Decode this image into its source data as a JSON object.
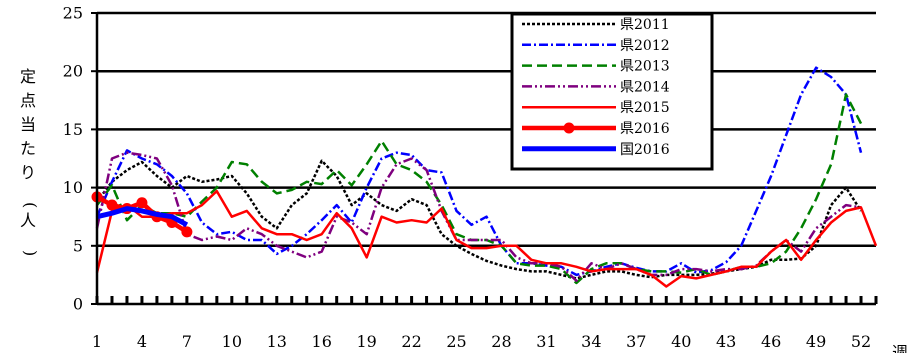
{
  "chart_data": {
    "type": "line",
    "title": "",
    "ylabel": "定点当たり(人)",
    "xlabel": "週",
    "ylim": [
      0,
      25
    ],
    "yticks": [
      0,
      5,
      10,
      15,
      20,
      25
    ],
    "xlim": [
      1,
      53
    ],
    "xticks": [
      1,
      4,
      7,
      10,
      13,
      16,
      19,
      22,
      25,
      28,
      31,
      34,
      37,
      40,
      43,
      46,
      49,
      52
    ],
    "grid": "horizontal",
    "legend_position": "top-right",
    "series": [
      {
        "name": "県2011",
        "color": "#000000",
        "dash": "3 2",
        "width": 2.5,
        "marker": false,
        "x": [
          1,
          2,
          3,
          4,
          5,
          6,
          7,
          8,
          9,
          10,
          11,
          12,
          13,
          14,
          15,
          16,
          17,
          18,
          19,
          20,
          21,
          22,
          23,
          24,
          25,
          26,
          27,
          28,
          29,
          30,
          31,
          32,
          33,
          34,
          35,
          36,
          37,
          38,
          39,
          40,
          41,
          42,
          43,
          44,
          45,
          46,
          47,
          48,
          49,
          50,
          51,
          52
        ],
        "y": [
          8.8,
          10.5,
          11.5,
          12.2,
          11,
          10,
          11,
          10.5,
          10.7,
          11,
          9.5,
          7.5,
          6.5,
          8.5,
          9.5,
          12.3,
          11,
          8.5,
          9.5,
          8.5,
          8,
          9,
          8.5,
          6,
          5,
          4.3,
          3.7,
          3.3,
          3,
          2.8,
          2.8,
          2.5,
          2.2,
          2.5,
          2.8,
          2.8,
          2.5,
          2.3,
          2.5,
          2.5,
          2.5,
          2.6,
          2.8,
          3,
          3.2,
          3.8,
          3.8,
          3.9,
          5,
          8.5,
          10,
          8
        ]
      },
      {
        "name": "県2012",
        "color": "#0000ff",
        "dash": "9 3 2 3",
        "width": 2.5,
        "marker": false,
        "x": [
          1,
          2,
          3,
          4,
          5,
          6,
          7,
          8,
          9,
          10,
          11,
          12,
          13,
          14,
          15,
          16,
          17,
          18,
          19,
          20,
          21,
          22,
          23,
          24,
          25,
          26,
          27,
          28,
          29,
          30,
          31,
          32,
          33,
          34,
          35,
          36,
          37,
          38,
          39,
          40,
          41,
          42,
          43,
          44,
          45,
          46,
          47,
          48,
          49,
          50,
          51,
          52
        ],
        "y": [
          7.5,
          10.5,
          13.2,
          12.5,
          12,
          11,
          9.5,
          7,
          6,
          6.2,
          5.5,
          5.5,
          4.3,
          5,
          6,
          7.2,
          8.5,
          7,
          10,
          12.5,
          13,
          12.8,
          11.5,
          11.3,
          8,
          6.8,
          7.5,
          5,
          3.5,
          3.5,
          3.3,
          3.2,
          2.5,
          2.8,
          3.2,
          3.5,
          3.1,
          2.8,
          2.8,
          3.5,
          2.7,
          2.9,
          3.6,
          5,
          8,
          11,
          14.5,
          18,
          20.3,
          19.5,
          18,
          13
        ]
      },
      {
        "name": "県2013",
        "color": "#008000",
        "dash": "10 5",
        "width": 2.5,
        "marker": false,
        "x": [
          1,
          2,
          3,
          4,
          5,
          6,
          7,
          8,
          9,
          10,
          11,
          12,
          13,
          14,
          15,
          16,
          17,
          18,
          19,
          20,
          21,
          22,
          23,
          24,
          25,
          26,
          27,
          28,
          29,
          30,
          31,
          32,
          33,
          34,
          35,
          36,
          37,
          38,
          39,
          40,
          41,
          42,
          43,
          44,
          45,
          46,
          47,
          48,
          49,
          50,
          51,
          52
        ],
        "y": [
          8.5,
          10.2,
          7.2,
          8.5,
          7.8,
          7.8,
          7.5,
          8.8,
          10,
          12.2,
          12,
          10.5,
          9.5,
          9.8,
          10.5,
          10.3,
          11.5,
          10.2,
          12,
          14,
          12,
          11.5,
          10.5,
          8.5,
          6,
          5.5,
          5.5,
          5,
          3.5,
          3.3,
          3.3,
          3,
          1.8,
          3,
          3.5,
          3.5,
          3,
          2.8,
          2.8,
          2.7,
          3,
          2.5,
          2.8,
          3.2,
          3.2,
          3.5,
          4.5,
          6.5,
          9,
          12,
          18,
          15.5
        ]
      },
      {
        "name": "県2014",
        "color": "#7f007f",
        "dash": "10 3 2 3 2 3",
        "width": 2.5,
        "marker": false,
        "x": [
          1,
          2,
          3,
          4,
          5,
          6,
          7,
          8,
          9,
          10,
          11,
          12,
          13,
          14,
          15,
          16,
          17,
          18,
          19,
          20,
          21,
          22,
          23,
          24,
          25,
          26,
          27,
          28,
          29,
          30,
          31,
          32,
          33,
          34,
          35,
          36,
          37,
          38,
          39,
          40,
          41,
          42,
          43,
          44,
          45,
          46,
          47,
          48,
          49,
          50,
          51,
          52
        ],
        "y": [
          6.5,
          12.5,
          13,
          12.8,
          12.5,
          10.2,
          6,
          5.5,
          5.8,
          5.5,
          6.5,
          6,
          5,
          4.5,
          4,
          4.5,
          7.5,
          7,
          6,
          10,
          12,
          12.5,
          11.5,
          8,
          5.5,
          5.5,
          5.5,
          5.5,
          4,
          3.5,
          3.5,
          3.2,
          2,
          3.5,
          3,
          3.5,
          3,
          2.5,
          2.5,
          3,
          3,
          2.8,
          3,
          3,
          3.3,
          4.5,
          5.5,
          4.5,
          6.5,
          7.5,
          8.5,
          8.3
        ]
      },
      {
        "name": "県2015",
        "color": "#ff0000",
        "dash": "",
        "width": 2.5,
        "marker": false,
        "x": [
          1,
          2,
          3,
          4,
          5,
          6,
          7,
          8,
          9,
          10,
          11,
          12,
          13,
          14,
          15,
          16,
          17,
          18,
          19,
          20,
          21,
          22,
          23,
          24,
          25,
          26,
          27,
          28,
          29,
          30,
          31,
          32,
          33,
          34,
          35,
          36,
          37,
          38,
          39,
          40,
          41,
          42,
          43,
          44,
          45,
          46,
          47,
          48,
          49,
          50,
          51,
          52,
          53
        ],
        "y": [
          2.7,
          8,
          8.5,
          7.5,
          7.5,
          7.8,
          7.8,
          8.5,
          9.7,
          7.5,
          8,
          6.5,
          6,
          6,
          5.5,
          6,
          7.8,
          6.5,
          4,
          7.5,
          7,
          7.2,
          7,
          8.2,
          5.5,
          4.8,
          4.8,
          5,
          5,
          3.8,
          3.5,
          3.5,
          3.2,
          2.8,
          3,
          3,
          3,
          2.5,
          1.5,
          2.4,
          2.2,
          2.5,
          2.8,
          3.2,
          3.2,
          4.5,
          5.5,
          3.8,
          5.5,
          7,
          8,
          8.3,
          5
        ]
      },
      {
        "name": "県2016",
        "color": "#ff0000",
        "dash": "",
        "width": 4.5,
        "marker": true,
        "x": [
          1,
          2,
          3,
          4,
          5,
          6,
          7
        ],
        "y": [
          9.2,
          8.5,
          8.2,
          8.7,
          7.5,
          7,
          6.2
        ]
      },
      {
        "name": "国2016",
        "color": "#0000ff",
        "dash": "",
        "width": 5,
        "marker": false,
        "x": [
          1,
          2,
          3,
          4,
          5,
          6,
          7
        ],
        "y": [
          7.5,
          7.8,
          8.2,
          8,
          7.7,
          7.5,
          6.8
        ]
      }
    ]
  }
}
